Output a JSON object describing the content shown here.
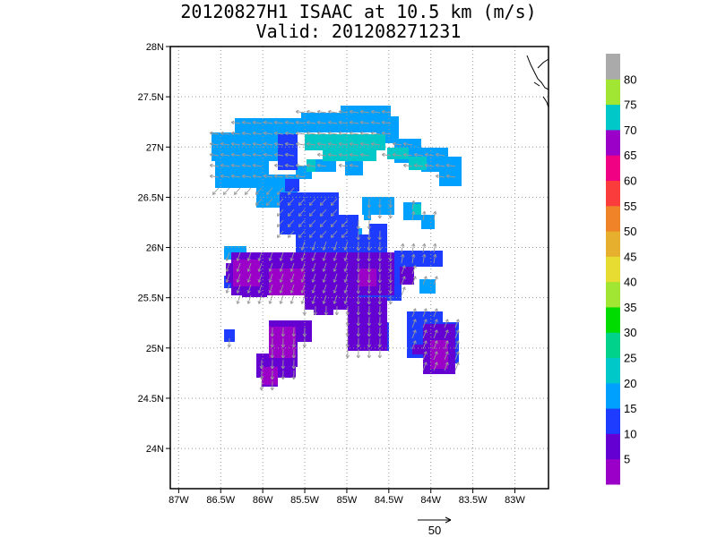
{
  "title": {
    "line1": "20120827H1 ISAAC at 10.5 km (m/s)",
    "line2": "Valid: 201208271231"
  },
  "map": {
    "lon_range": [
      -87.1,
      -82.6
    ],
    "lat_range": [
      23.6,
      28.0
    ],
    "lon_ticks": [
      {
        "value": -87,
        "label": "87W"
      },
      {
        "value": -86.5,
        "label": "86.5W"
      },
      {
        "value": -86,
        "label": "86W"
      },
      {
        "value": -85.5,
        "label": "85.5W"
      },
      {
        "value": -85,
        "label": "85W"
      },
      {
        "value": -84.5,
        "label": "84.5W"
      },
      {
        "value": -84,
        "label": "84W"
      },
      {
        "value": -83.5,
        "label": "83.5W"
      },
      {
        "value": -83,
        "label": "83W"
      }
    ],
    "lat_ticks": [
      {
        "value": 24,
        "label": "24N"
      },
      {
        "value": 24.5,
        "label": "24.5N"
      },
      {
        "value": 25,
        "label": "25N"
      },
      {
        "value": 25.5,
        "label": "25.5N"
      },
      {
        "value": 26,
        "label": "26N"
      },
      {
        "value": 26.5,
        "label": "26.5N"
      },
      {
        "value": 27,
        "label": "27N"
      },
      {
        "value": 27.5,
        "label": "27.5N"
      },
      {
        "value": 28,
        "label": "28N"
      }
    ],
    "grid": true,
    "wind_field": [
      {
        "lon": -86.3,
        "lat": 26.95,
        "lon2": -85.2,
        "lat2": 27.15,
        "speed": 19
      },
      {
        "lon": -85.5,
        "lat": 27.4,
        "lon2": -84.4,
        "lat2": 27.2,
        "speed": 19
      },
      {
        "lon": -85.0,
        "lat": 27.15,
        "lon2": -84.5,
        "lat2": 26.95,
        "speed": 22
      },
      {
        "lon": -84.5,
        "lat": 27.0,
        "lon2": -83.9,
        "lat2": 26.85,
        "speed": 20
      },
      {
        "lon": -85.8,
        "lat": 26.8,
        "lon2": -85.3,
        "lat2": 26.4,
        "speed": 19
      },
      {
        "lon": -85.6,
        "lat": 26.45,
        "lon2": -85.0,
        "lat2": 26.05,
        "speed": 14
      },
      {
        "lon": -86.4,
        "lat": 25.9,
        "lon2": -84.6,
        "lat2": 25.6,
        "speed": 8
      },
      {
        "lon": -84.6,
        "lat": 25.95,
        "lon2": -84.1,
        "lat2": 25.7,
        "speed": 14
      },
      {
        "lon": -85.3,
        "lat": 25.55,
        "lon2": -84.7,
        "lat2": 25.05,
        "speed": 9
      },
      {
        "lon": -85.8,
        "lat": 25.3,
        "lon2": -85.4,
        "lat2": 24.75,
        "speed": 7
      },
      {
        "lon": -84.3,
        "lat": 25.35,
        "lon2": -83.8,
        "lat2": 24.85,
        "speed": 14
      },
      {
        "lon": -84.1,
        "lat": 25.15,
        "lon2": -83.85,
        "lat2": 24.85,
        "speed": 9
      }
    ]
  },
  "colorbar": {
    "bands": [
      {
        "color": "#9b00c8",
        "label": "5"
      },
      {
        "color": "#6400d2",
        "label": "10"
      },
      {
        "color": "#1e3cff",
        "label": "15"
      },
      {
        "color": "#00a0ff",
        "label": "20"
      },
      {
        "color": "#00c8c8",
        "label": "25"
      },
      {
        "color": "#00d28c",
        "label": "30"
      },
      {
        "color": "#00dc00",
        "label": "35"
      },
      {
        "color": "#a0e632",
        "label": "40"
      },
      {
        "color": "#e6dc32",
        "label": "45"
      },
      {
        "color": "#e6af2d",
        "label": "50"
      },
      {
        "color": "#f08228",
        "label": "55"
      },
      {
        "color": "#fa3c3c",
        "label": "60"
      },
      {
        "color": "#f00082",
        "label": "65"
      },
      {
        "color": "#9b00c8",
        "label": "70"
      },
      {
        "color": "#00c8c8",
        "label": "75"
      },
      {
        "color": "#a0e632",
        "label": "80"
      },
      {
        "color": "#aaaaaa",
        "label": ""
      }
    ]
  },
  "reference_vector": {
    "label": "50"
  }
}
